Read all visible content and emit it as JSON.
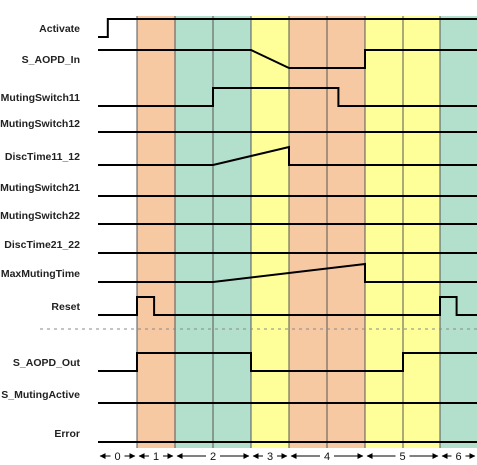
{
  "colors": {
    "phase_fill": [
      "#ffffff",
      "#f7c9a3",
      "#b3e0cc",
      "#ffff99",
      "#f7c9a3",
      "#ffff99",
      "#b3e0cc"
    ],
    "trace": "#000000",
    "grid": "#555555",
    "separator": "#888888"
  },
  "phase_labels": [
    "0",
    "1",
    "2",
    "3",
    "4",
    "5",
    "6"
  ],
  "phase_spans": [
    [
      0,
      1
    ],
    [
      1,
      2
    ],
    [
      2,
      4
    ],
    [
      4,
      5
    ],
    [
      5,
      7
    ],
    [
      7,
      9
    ],
    [
      9,
      10
    ]
  ],
  "time_points": 11,
  "signals": [
    {
      "label": "Activate",
      "wave": [
        [
          0,
          0
        ],
        [
          0.25,
          0
        ],
        [
          0.25,
          1
        ],
        [
          10,
          1
        ]
      ]
    },
    {
      "label": "S_AOPD_In",
      "wave": [
        [
          0,
          1
        ],
        [
          4,
          1
        ],
        [
          5,
          0
        ],
        [
          7,
          0
        ],
        [
          7,
          1
        ],
        [
          10,
          1
        ]
      ]
    },
    {
      "label": "MutingSwitch11",
      "wave": [
        [
          0,
          0
        ],
        [
          3,
          0
        ],
        [
          3,
          1
        ],
        [
          6.3,
          1
        ],
        [
          6.3,
          0
        ],
        [
          10,
          0
        ]
      ]
    },
    {
      "label": "MutingSwitch12",
      "wave": [
        [
          0,
          0
        ],
        [
          10,
          0
        ]
      ]
    },
    {
      "label": "DiscTime11_12",
      "wave": [
        [
          0,
          0
        ],
        [
          3,
          0
        ],
        [
          5,
          1
        ],
        [
          5,
          0
        ],
        [
          10,
          0
        ]
      ]
    },
    {
      "label": "MutingSwitch21",
      "wave": [
        [
          0,
          0
        ],
        [
          10,
          0
        ]
      ]
    },
    {
      "label": "MutingSwitch22",
      "wave": [
        [
          0,
          0
        ],
        [
          10,
          0
        ]
      ]
    },
    {
      "label": "DiscTime21_22",
      "wave": [
        [
          0,
          0
        ],
        [
          10,
          0
        ]
      ]
    },
    {
      "label": "MaxMutingTime",
      "wave": [
        [
          0,
          0
        ],
        [
          3,
          0
        ],
        [
          7,
          1
        ],
        [
          7,
          0
        ],
        [
          10,
          0
        ]
      ]
    },
    {
      "label": "Reset",
      "wave": [
        [
          0,
          0
        ],
        [
          1,
          0
        ],
        [
          1,
          1
        ],
        [
          1.45,
          1
        ],
        [
          1.45,
          0
        ],
        [
          9,
          0
        ],
        [
          9,
          1
        ],
        [
          9.45,
          1
        ],
        [
          9.45,
          0
        ],
        [
          10,
          0
        ]
      ]
    },
    {
      "label": "S_AOPD_Out",
      "wave": [
        [
          0,
          0
        ],
        [
          1,
          0
        ],
        [
          1,
          1
        ],
        [
          4,
          1
        ],
        [
          4,
          0
        ],
        [
          8,
          0
        ],
        [
          8,
          1
        ],
        [
          10,
          1
        ]
      ]
    },
    {
      "label": "S_MutingActive",
      "wave": [
        [
          0,
          0
        ],
        [
          10,
          0
        ]
      ]
    },
    {
      "label": "Error",
      "wave": [
        [
          0,
          0
        ],
        [
          10,
          0
        ]
      ]
    }
  ]
}
